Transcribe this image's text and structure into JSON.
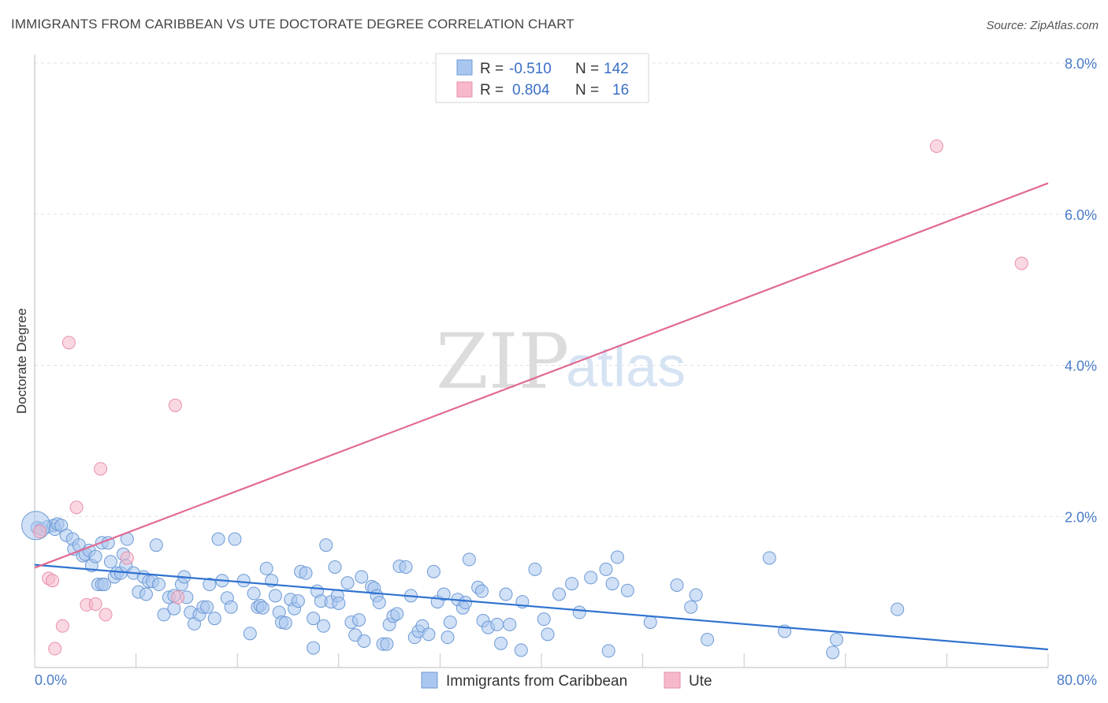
{
  "header": {
    "title": "IMMIGRANTS FROM CARIBBEAN VS UTE DOCTORATE DEGREE CORRELATION CHART",
    "source": "Source: ZipAtlas.com"
  },
  "watermark": {
    "zip": "ZIP",
    "atlas": "atlas"
  },
  "legend_box": {
    "rows": [
      {
        "r_label": "R = ",
        "r_value": "-0.510",
        "n_label": "N = ",
        "n_value": "142"
      },
      {
        "r_label": "R = ",
        "r_value": "0.804",
        "n_label": "N = ",
        "n_value": "16"
      }
    ]
  },
  "colors": {
    "blue_fill": "#a9c7ee",
    "blue_stroke": "#6d9ad6",
    "blue_line": "#2f72d0",
    "pink_fill": "#f6b8ca",
    "pink_stroke": "#e890ab",
    "pink_line": "#e06a94",
    "tick_text": "#4a7cc9"
  },
  "chart_data": {
    "type": "scatter",
    "title": "IMMIGRANTS FROM CARIBBEAN VS UTE DOCTORATE DEGREE CORRELATION CHART",
    "xlabel": "",
    "ylabel": "Doctorate Degree",
    "xlim": [
      0,
      80
    ],
    "ylim": [
      0,
      8
    ],
    "x_tick_labels": [
      "0.0%",
      "80.0%"
    ],
    "y_ticks": [
      2,
      4,
      6,
      8
    ],
    "y_tick_labels": [
      "2.0%",
      "4.0%",
      "6.0%",
      "8.0%"
    ],
    "grid": true,
    "legend_position": "bottom",
    "series": [
      {
        "name": "Immigrants from Caribbean",
        "color": "#a9c7ee",
        "r": -0.51,
        "n": 142,
        "trend": {
          "x": [
            0,
            80
          ],
          "y": [
            1.36,
            0.24
          ]
        },
        "points": [
          [
            0.2,
            1.85
          ],
          [
            0.5,
            1.83
          ],
          [
            1,
            1.86
          ],
          [
            1.5,
            1.88
          ],
          [
            1.6,
            1.83
          ],
          [
            1.8,
            1.9
          ],
          [
            2.1,
            1.88
          ],
          [
            2.5,
            1.75
          ],
          [
            3.1,
            1.57
          ],
          [
            3,
            1.7
          ],
          [
            3.5,
            1.62
          ],
          [
            3.8,
            1.48
          ],
          [
            4,
            1.5
          ],
          [
            4.3,
            1.55
          ],
          [
            4.5,
            1.35
          ],
          [
            4.8,
            1.47
          ],
          [
            5,
            1.1
          ],
          [
            5.3,
            1.1
          ],
          [
            5.5,
            1.1
          ],
          [
            5.3,
            1.65
          ],
          [
            5.8,
            1.65
          ],
          [
            6,
            1.4
          ],
          [
            6.3,
            1.2
          ],
          [
            6.5,
            1.25
          ],
          [
            6.8,
            1.25
          ],
          [
            7,
            1.5
          ],
          [
            7.2,
            1.35
          ],
          [
            7.3,
            1.7
          ],
          [
            7.8,
            1.25
          ],
          [
            8.2,
            1.0
          ],
          [
            8.6,
            1.2
          ],
          [
            8.8,
            0.97
          ],
          [
            9,
            1.14
          ],
          [
            9.3,
            1.14
          ],
          [
            9.6,
            1.62
          ],
          [
            9.8,
            1.1
          ],
          [
            10.2,
            0.7
          ],
          [
            10.6,
            0.93
          ],
          [
            11,
            0.78
          ],
          [
            11,
            0.95
          ],
          [
            11.6,
            1.1
          ],
          [
            11.8,
            1.2
          ],
          [
            12,
            0.93
          ],
          [
            12.3,
            0.73
          ],
          [
            12.6,
            0.58
          ],
          [
            13,
            0.7
          ],
          [
            13.3,
            0.8
          ],
          [
            13.6,
            0.8
          ],
          [
            13.8,
            1.1
          ],
          [
            14.2,
            0.65
          ],
          [
            14.5,
            1.7
          ],
          [
            14.8,
            1.15
          ],
          [
            15.2,
            0.92
          ],
          [
            15.5,
            0.8
          ],
          [
            15.8,
            1.7
          ],
          [
            16.5,
            1.15
          ],
          [
            17,
            0.45
          ],
          [
            17.3,
            0.98
          ],
          [
            17.6,
            0.8
          ],
          [
            17.8,
            0.82
          ],
          [
            18,
            0.79
          ],
          [
            18.3,
            1.31
          ],
          [
            18.7,
            1.15
          ],
          [
            19,
            0.95
          ],
          [
            19.3,
            0.73
          ],
          [
            19.5,
            0.6
          ],
          [
            19.8,
            0.59
          ],
          [
            20.2,
            0.9
          ],
          [
            20.5,
            0.78
          ],
          [
            20.8,
            0.88
          ],
          [
            21,
            1.27
          ],
          [
            21.4,
            1.25
          ],
          [
            22,
            0.26
          ],
          [
            22,
            0.65
          ],
          [
            22.3,
            1.01
          ],
          [
            22.6,
            0.88
          ],
          [
            22.8,
            0.55
          ],
          [
            23,
            1.62
          ],
          [
            23.4,
            0.87
          ],
          [
            23.7,
            1.33
          ],
          [
            23.9,
            0.95
          ],
          [
            24,
            0.85
          ],
          [
            24.7,
            1.12
          ],
          [
            25,
            0.6
          ],
          [
            25.3,
            0.43
          ],
          [
            25.6,
            0.63
          ],
          [
            25.8,
            1.2
          ],
          [
            26,
            0.35
          ],
          [
            26.6,
            1.07
          ],
          [
            26.8,
            1.05
          ],
          [
            27,
            0.95
          ],
          [
            27.2,
            0.86
          ],
          [
            27.5,
            0.31
          ],
          [
            27.8,
            0.31
          ],
          [
            28,
            0.57
          ],
          [
            28.3,
            0.68
          ],
          [
            28.6,
            0.71
          ],
          [
            28.8,
            1.34
          ],
          [
            29.3,
            1.33
          ],
          [
            29.7,
            0.95
          ],
          [
            30,
            0.4
          ],
          [
            30.3,
            0.48
          ],
          [
            30.6,
            0.55
          ],
          [
            31.1,
            0.44
          ],
          [
            31.5,
            1.27
          ],
          [
            31.8,
            0.87
          ],
          [
            32.3,
            0.97
          ],
          [
            32.6,
            0.4
          ],
          [
            32.8,
            0.6
          ],
          [
            33.4,
            0.9
          ],
          [
            33.8,
            0.79
          ],
          [
            34,
            0.86
          ],
          [
            34.3,
            1.43
          ],
          [
            35,
            1.06
          ],
          [
            35.3,
            1.01
          ],
          [
            35.4,
            0.62
          ],
          [
            35.8,
            0.53
          ],
          [
            36.5,
            0.57
          ],
          [
            36.8,
            0.32
          ],
          [
            37.2,
            0.97
          ],
          [
            37.5,
            0.57
          ],
          [
            38.5,
            0.87
          ],
          [
            38.4,
            0.23
          ],
          [
            39.5,
            1.3
          ],
          [
            40.2,
            0.64
          ],
          [
            40.5,
            0.44
          ],
          [
            41.4,
            0.97
          ],
          [
            42.4,
            1.11
          ],
          [
            43,
            0.73
          ],
          [
            43.9,
            1.19
          ],
          [
            45.1,
            1.3
          ],
          [
            45.3,
            0.22
          ],
          [
            45.6,
            1.11
          ],
          [
            46,
            1.46
          ],
          [
            46.8,
            1.02
          ],
          [
            48.6,
            0.6
          ],
          [
            50.7,
            1.09
          ],
          [
            51.8,
            0.8
          ],
          [
            52.2,
            0.96
          ],
          [
            53.1,
            0.37
          ],
          [
            58,
            1.45
          ],
          [
            59.2,
            0.48
          ],
          [
            63,
            0.2
          ],
          [
            63.3,
            0.37
          ],
          [
            68.1,
            0.77
          ],
          [
            0.1,
            1.88
          ]
        ]
      },
      {
        "name": "Ute",
        "color": "#f6b8ca",
        "r": 0.804,
        "n": 16,
        "trend": {
          "x": [
            0,
            80
          ],
          "y": [
            1.32,
            6.41
          ]
        },
        "points": [
          [
            0.4,
            1.8
          ],
          [
            1.1,
            1.18
          ],
          [
            1.4,
            1.15
          ],
          [
            1.6,
            0.25
          ],
          [
            2.2,
            0.55
          ],
          [
            2.7,
            4.3
          ],
          [
            3.3,
            2.12
          ],
          [
            4.1,
            0.83
          ],
          [
            4.8,
            0.84
          ],
          [
            5.2,
            2.63
          ],
          [
            5.6,
            0.7
          ],
          [
            7.3,
            1.45
          ],
          [
            11.1,
            3.47
          ],
          [
            11.3,
            0.93
          ],
          [
            71.2,
            6.9
          ],
          [
            77.9,
            5.35
          ]
        ]
      }
    ]
  }
}
